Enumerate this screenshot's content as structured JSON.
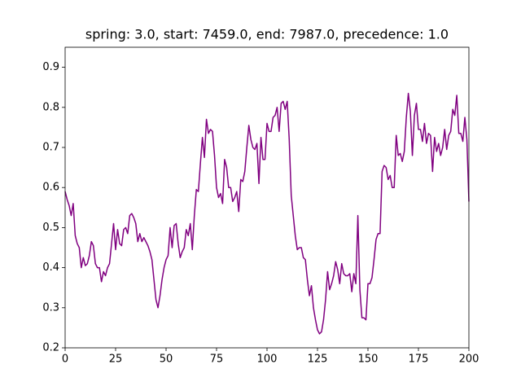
{
  "chart_data": {
    "type": "line",
    "title": "spring: 3.0, start: 7459.0, end: 7987.0, precedence: 1.0",
    "x": [
      0,
      1,
      2,
      3,
      4,
      5,
      6,
      7,
      8,
      9,
      10,
      11,
      12,
      13,
      14,
      15,
      16,
      17,
      18,
      19,
      20,
      21,
      22,
      23,
      24,
      25,
      26,
      27,
      28,
      29,
      30,
      31,
      32,
      33,
      34,
      35,
      36,
      37,
      38,
      39,
      40,
      41,
      42,
      43,
      44,
      45,
      46,
      47,
      48,
      49,
      50,
      51,
      52,
      53,
      54,
      55,
      56,
      57,
      58,
      59,
      60,
      61,
      62,
      63,
      64,
      65,
      66,
      67,
      68,
      69,
      70,
      71,
      72,
      73,
      74,
      75,
      76,
      77,
      78,
      79,
      80,
      81,
      82,
      83,
      84,
      85,
      86,
      87,
      88,
      89,
      90,
      91,
      92,
      93,
      94,
      95,
      96,
      97,
      98,
      99,
      100,
      101,
      102,
      103,
      104,
      105,
      106,
      107,
      108,
      109,
      110,
      111,
      112,
      113,
      114,
      115,
      116,
      117,
      118,
      119,
      120,
      121,
      122,
      123,
      124,
      125,
      126,
      127,
      128,
      129,
      130,
      131,
      132,
      133,
      134,
      135,
      136,
      137,
      138,
      139,
      140,
      141,
      142,
      143,
      144,
      145,
      146,
      147,
      148,
      149,
      150,
      151,
      152,
      153,
      154,
      155,
      156,
      157,
      158,
      159,
      160,
      161,
      162,
      163,
      164,
      165,
      166,
      167,
      168,
      169,
      170,
      171,
      172,
      173,
      174,
      175,
      176,
      177,
      178,
      179,
      180,
      181,
      182,
      183,
      184,
      185,
      186,
      187,
      188,
      189,
      190,
      191,
      192,
      193,
      194,
      195,
      196,
      197,
      198,
      199,
      200
    ],
    "series": [
      {
        "color": "#800080",
        "values": [
          0.59,
          0.57,
          0.555,
          0.53,
          0.56,
          0.48,
          0.46,
          0.45,
          0.4,
          0.425,
          0.405,
          0.41,
          0.43,
          0.465,
          0.455,
          0.41,
          0.4,
          0.4,
          0.365,
          0.39,
          0.38,
          0.4,
          0.41,
          0.46,
          0.51,
          0.445,
          0.495,
          0.46,
          0.455,
          0.495,
          0.5,
          0.485,
          0.53,
          0.535,
          0.525,
          0.51,
          0.465,
          0.485,
          0.465,
          0.475,
          0.465,
          0.455,
          0.44,
          0.42,
          0.37,
          0.32,
          0.3,
          0.33,
          0.37,
          0.4,
          0.42,
          0.43,
          0.5,
          0.45,
          0.505,
          0.51,
          0.46,
          0.425,
          0.44,
          0.45,
          0.495,
          0.48,
          0.51,
          0.445,
          0.53,
          0.595,
          0.59,
          0.66,
          0.725,
          0.675,
          0.77,
          0.735,
          0.745,
          0.74,
          0.68,
          0.6,
          0.575,
          0.585,
          0.56,
          0.67,
          0.65,
          0.6,
          0.6,
          0.565,
          0.575,
          0.59,
          0.54,
          0.62,
          0.615,
          0.64,
          0.7,
          0.755,
          0.72,
          0.7,
          0.695,
          0.71,
          0.61,
          0.725,
          0.67,
          0.67,
          0.76,
          0.74,
          0.74,
          0.775,
          0.78,
          0.8,
          0.74,
          0.81,
          0.815,
          0.795,
          0.815,
          0.72,
          0.58,
          0.53,
          0.48,
          0.445,
          0.45,
          0.45,
          0.425,
          0.42,
          0.37,
          0.33,
          0.355,
          0.3,
          0.27,
          0.245,
          0.235,
          0.24,
          0.27,
          0.32,
          0.39,
          0.345,
          0.36,
          0.38,
          0.415,
          0.395,
          0.36,
          0.41,
          0.385,
          0.38,
          0.38,
          0.385,
          0.34,
          0.385,
          0.36,
          0.53,
          0.345,
          0.275,
          0.275,
          0.27,
          0.36,
          0.36,
          0.375,
          0.42,
          0.47,
          0.485,
          0.485,
          0.64,
          0.655,
          0.65,
          0.62,
          0.63,
          0.6,
          0.6,
          0.73,
          0.68,
          0.685,
          0.665,
          0.69,
          0.775,
          0.835,
          0.79,
          0.68,
          0.78,
          0.81,
          0.745,
          0.745,
          0.715,
          0.76,
          0.71,
          0.735,
          0.73,
          0.64,
          0.725,
          0.69,
          0.71,
          0.68,
          0.7,
          0.745,
          0.695,
          0.73,
          0.74,
          0.795,
          0.78,
          0.83,
          0.735,
          0.735,
          0.715,
          0.775,
          0.72,
          0.565
        ]
      }
    ],
    "xlim": [
      0,
      200
    ],
    "xticks": [
      0,
      25,
      50,
      75,
      100,
      125,
      150,
      175,
      200
    ],
    "ylim": [
      0.2,
      0.95
    ],
    "yticks": [
      0.2,
      0.3,
      0.4,
      0.5,
      0.6,
      0.7,
      0.8,
      0.9
    ],
    "grid": false
  }
}
